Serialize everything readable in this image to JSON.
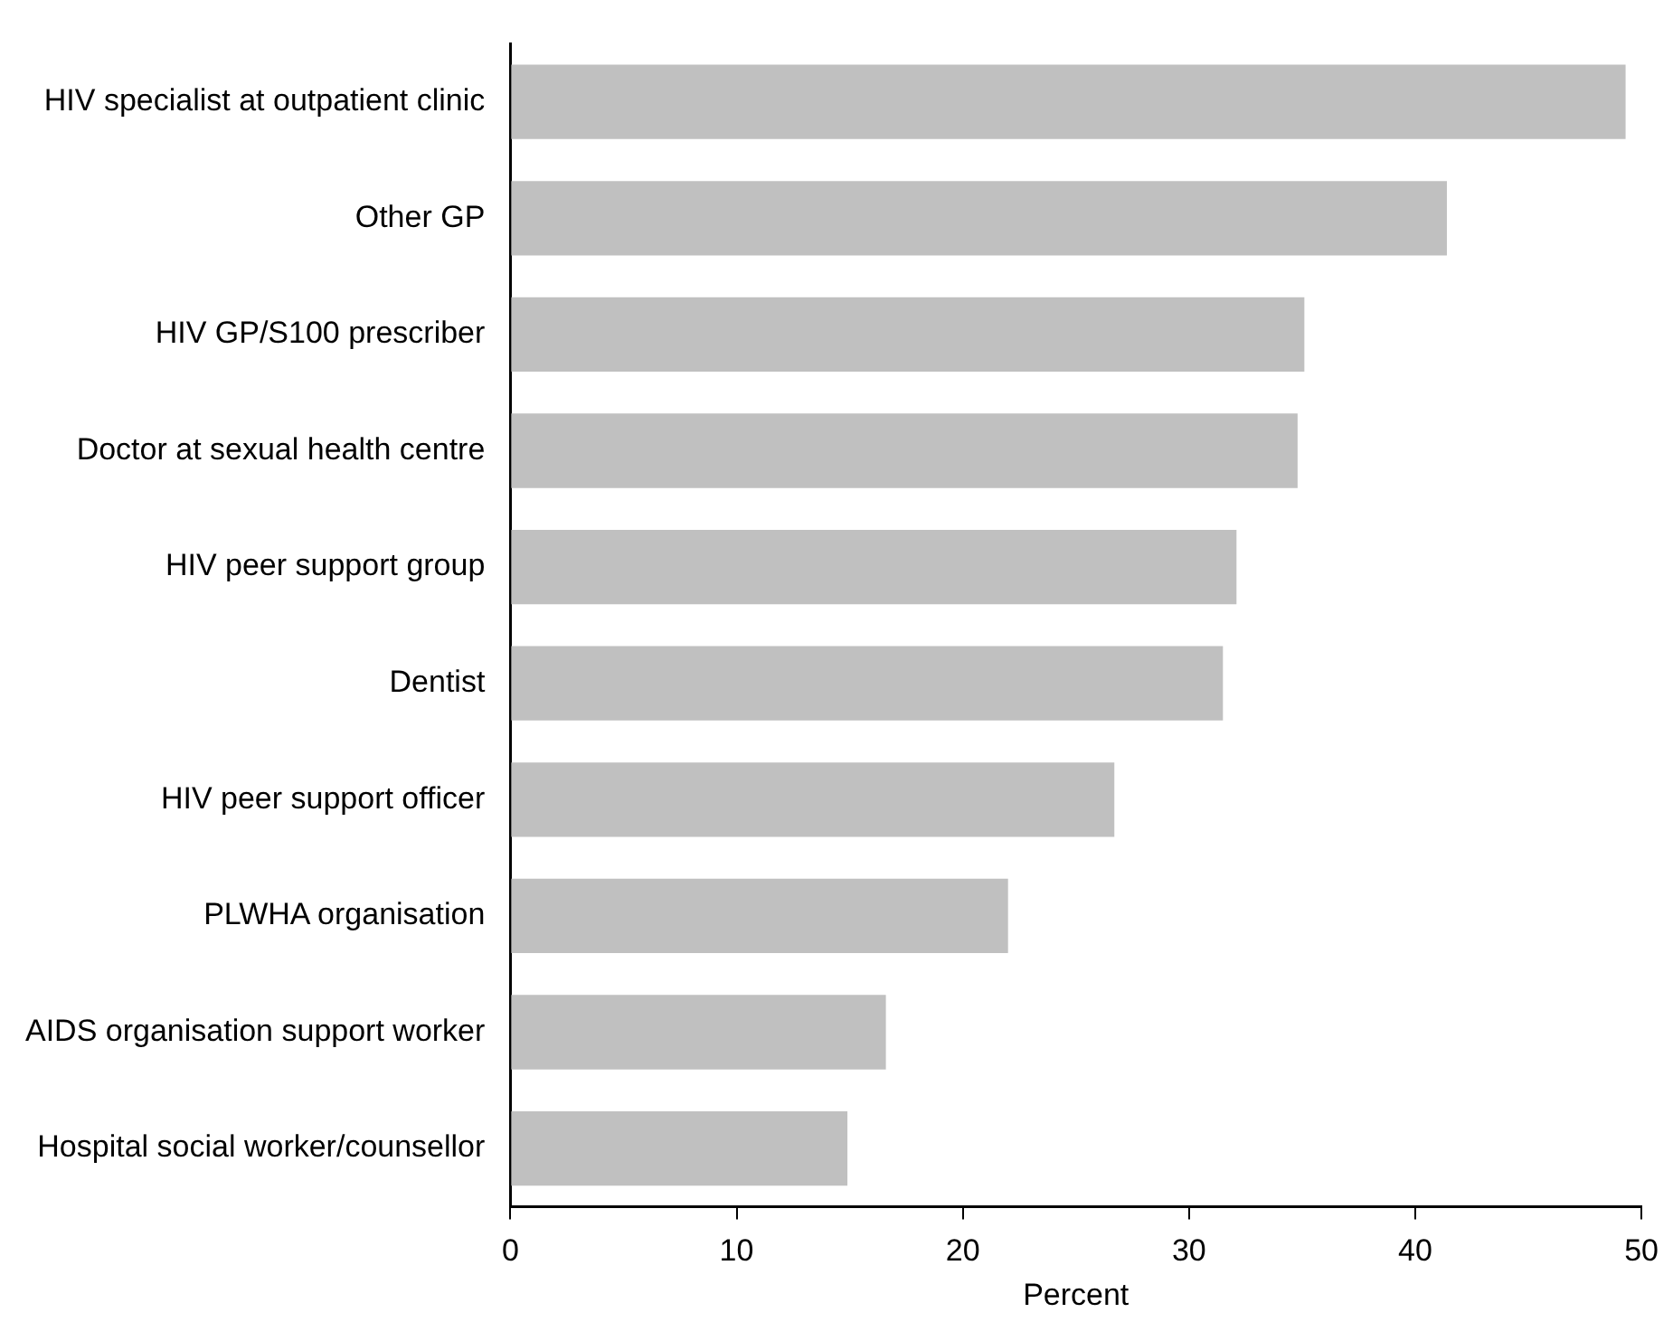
{
  "chart_data": {
    "type": "bar",
    "orientation": "horizontal",
    "xlabel": "Percent",
    "categories": [
      "HIV specialist at outpatient clinic",
      "Other GP",
      "HIV GP/S100 prescriber",
      "Doctor at sexual health centre",
      "HIV peer support group",
      "Dentist",
      "HIV peer support officer",
      "PLWHA organisation",
      "AIDS organisation support worker",
      "Hospital social worker/counsellor"
    ],
    "values": [
      49.3,
      41.4,
      35.1,
      34.8,
      32.1,
      31.5,
      26.7,
      22.0,
      16.6,
      14.9
    ],
    "color": "#c0c0c0",
    "xlim": [
      0,
      50
    ],
    "xticks": [
      0,
      10,
      20,
      30,
      40,
      50
    ],
    "grid": false,
    "legend": false
  }
}
